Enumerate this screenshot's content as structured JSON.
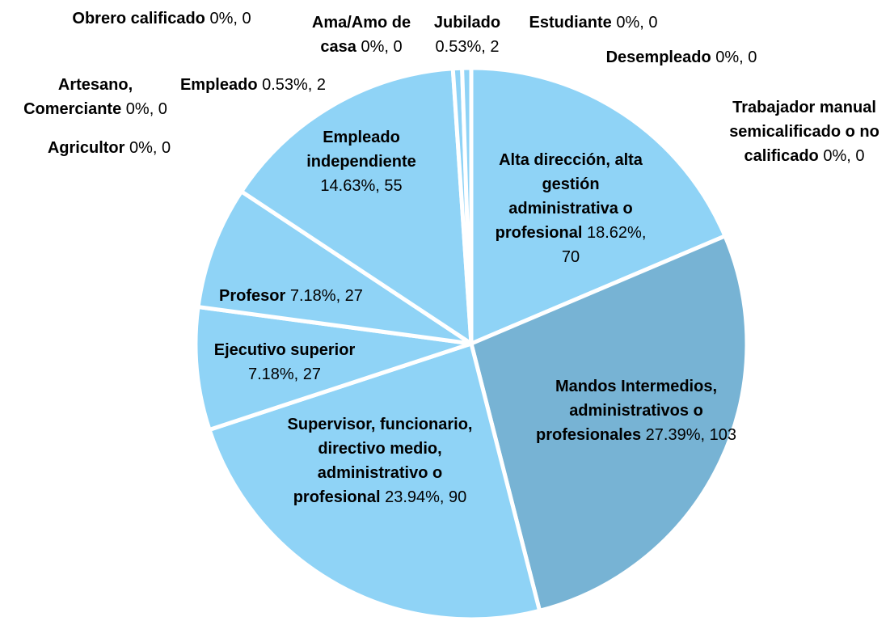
{
  "chart_data": {
    "type": "pie",
    "categories": [
      "Alta dirección, alta gestión administrativa o profesional",
      "Trabajador manual semicalificado o no calificado",
      "Mandos Intermedios, administrativos  o profesionales",
      "Supervisor, funcionario, directivo medio, administrativo o profesional",
      "Ejecutivo superior",
      "Profesor",
      "Empleado independiente",
      "Agricultor",
      "Artesano, Comerciante",
      "Empleado",
      "Obrero calificado",
      "Ama/Amo de casa",
      "Jubilado",
      "Estudiante",
      "Desempleado"
    ],
    "values": [
      70,
      0,
      103,
      90,
      27,
      27,
      55,
      0,
      0,
      2,
      0,
      0,
      2,
      0,
      0
    ],
    "value_labels": [
      "18.62%, 70",
      "0%, 0",
      "27.39%, 103",
      "23.94%, 90",
      "7.18%, 27",
      "7.18%, 27",
      "14.63%, 55",
      "0%, 0",
      "0%, 0",
      "0.53%, 2",
      "0%, 0",
      "0%, 0",
      "0.53%, 2",
      "0%, 0",
      "0%, 0"
    ],
    "colors": [
      "#8fd3f6",
      "#8fd3f6",
      "#77b3d4",
      "#8fd3f6",
      "#8fd3f6",
      "#8fd3f6",
      "#8fd3f6",
      "#8fd3f6",
      "#8fd3f6",
      "#8fd3f6",
      "#8fd3f6",
      "#8fd3f6",
      "#8fd3f6",
      "#8fd3f6",
      "#8fd3f6"
    ]
  }
}
